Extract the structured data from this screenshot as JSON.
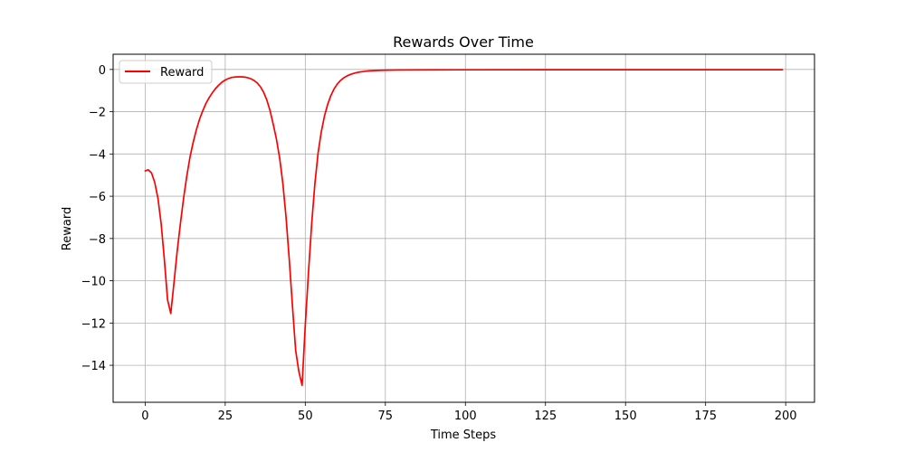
{
  "chart_data": {
    "type": "line",
    "title": "Rewards Over Time",
    "xlabel": "Time Steps",
    "ylabel": "Reward",
    "xlim": [
      -10,
      209
    ],
    "ylim": [
      -15.75,
      0.72
    ],
    "xticks": [
      0,
      25,
      50,
      75,
      100,
      125,
      150,
      175,
      200
    ],
    "yticks": [
      0,
      -2,
      -4,
      -6,
      -8,
      -10,
      -12,
      -14
    ],
    "xtick_labels": [
      "0",
      "25",
      "50",
      "75",
      "100",
      "125",
      "150",
      "175",
      "200"
    ],
    "ytick_labels": [
      "0",
      "−2",
      "−4",
      "−6",
      "−8",
      "−10",
      "−12",
      "−14"
    ],
    "grid": true,
    "legend_position": "upper left",
    "series": [
      {
        "name": "Reward",
        "color": "#ff0000",
        "points": [
          [
            0,
            -4.8
          ],
          [
            1,
            -4.75
          ],
          [
            2,
            -4.9
          ],
          [
            3,
            -5.35
          ],
          [
            4,
            -6.1
          ],
          [
            5,
            -7.3
          ],
          [
            6,
            -9.0
          ],
          [
            7,
            -10.9
          ],
          [
            8,
            -11.55
          ],
          [
            9,
            -10.1
          ],
          [
            10,
            -8.6
          ],
          [
            11,
            -7.3
          ],
          [
            12,
            -6.1
          ],
          [
            13,
            -5.05
          ],
          [
            14,
            -4.15
          ],
          [
            15,
            -3.45
          ],
          [
            16,
            -2.85
          ],
          [
            17,
            -2.35
          ],
          [
            18,
            -1.95
          ],
          [
            19,
            -1.6
          ],
          [
            20,
            -1.33
          ],
          [
            21,
            -1.1
          ],
          [
            22,
            -0.9
          ],
          [
            23,
            -0.74
          ],
          [
            24,
            -0.6
          ],
          [
            25,
            -0.5
          ],
          [
            26,
            -0.43
          ],
          [
            27,
            -0.38
          ],
          [
            28,
            -0.36
          ],
          [
            29,
            -0.35
          ],
          [
            30,
            -0.35
          ],
          [
            31,
            -0.36
          ],
          [
            32,
            -0.39
          ],
          [
            33,
            -0.44
          ],
          [
            34,
            -0.52
          ],
          [
            35,
            -0.64
          ],
          [
            36,
            -0.82
          ],
          [
            37,
            -1.08
          ],
          [
            38,
            -1.45
          ],
          [
            39,
            -1.95
          ],
          [
            40,
            -2.6
          ],
          [
            41,
            -3.3
          ],
          [
            42,
            -4.2
          ],
          [
            43,
            -5.4
          ],
          [
            44,
            -7.0
          ],
          [
            45,
            -9.0
          ],
          [
            46,
            -11.2
          ],
          [
            47,
            -13.3
          ],
          [
            48,
            -14.3
          ],
          [
            49,
            -14.95
          ],
          [
            50,
            -12.1
          ],
          [
            51,
            -9.6
          ],
          [
            52,
            -7.3
          ],
          [
            53,
            -5.4
          ],
          [
            54,
            -3.95
          ],
          [
            55,
            -2.95
          ],
          [
            56,
            -2.2
          ],
          [
            57,
            -1.65
          ],
          [
            58,
            -1.23
          ],
          [
            59,
            -0.92
          ],
          [
            60,
            -0.69
          ],
          [
            61,
            -0.52
          ],
          [
            62,
            -0.4
          ],
          [
            63,
            -0.31
          ],
          [
            64,
            -0.24
          ],
          [
            65,
            -0.19
          ],
          [
            66,
            -0.15
          ],
          [
            67,
            -0.12
          ],
          [
            68,
            -0.1
          ],
          [
            69,
            -0.08
          ],
          [
            70,
            -0.065
          ],
          [
            72,
            -0.05
          ],
          [
            75,
            -0.035
          ],
          [
            80,
            -0.025
          ],
          [
            90,
            -0.018
          ],
          [
            100,
            -0.015
          ],
          [
            125,
            -0.013
          ],
          [
            150,
            -0.012
          ],
          [
            175,
            -0.012
          ],
          [
            199,
            -0.012
          ]
        ]
      }
    ]
  }
}
